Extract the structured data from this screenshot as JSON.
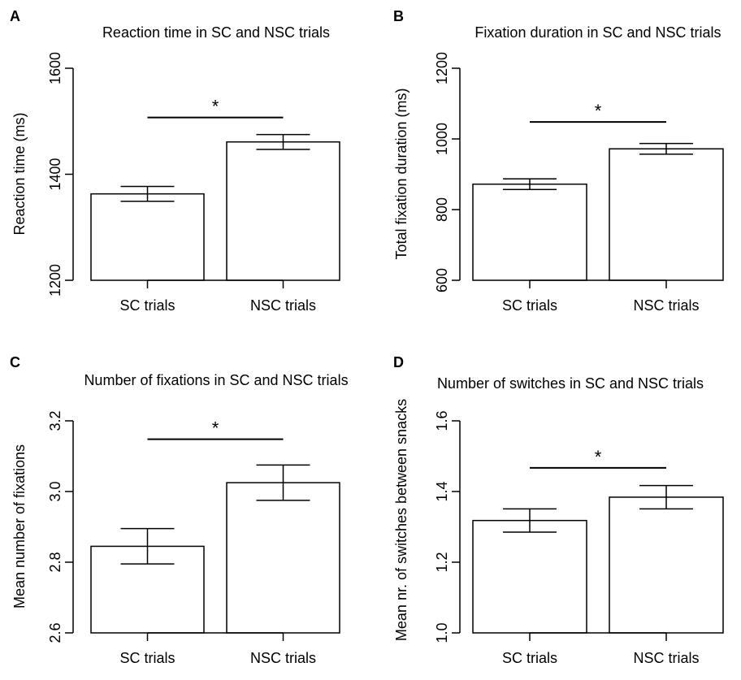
{
  "chart_data": [
    {
      "panel": "A",
      "type": "bar",
      "title": "Reaction time in SC and NSC trials",
      "ylabel": "Reaction time (ms)",
      "categories": [
        "SC trials",
        "NSC trials"
      ],
      "values": [
        1363,
        1461
      ],
      "errors": [
        14,
        14
      ],
      "ylim": [
        1200,
        1600
      ],
      "yticks": [
        1200,
        1400,
        1600
      ],
      "yticklabels": [
        "1200",
        "1400",
        "1600"
      ],
      "significance": "*",
      "sig_level": 1507,
      "grid": false
    },
    {
      "panel": "B",
      "type": "bar",
      "title": "Fixation duration in SC and NSC trials",
      "ylabel": "Total fixation duration (ms)",
      "categories": [
        "SC trials",
        "NSC trials"
      ],
      "values": [
        872,
        972
      ],
      "errors": [
        15,
        15
      ],
      "ylim": [
        600,
        1200
      ],
      "yticks": [
        600,
        800,
        1000,
        1200
      ],
      "yticklabels": [
        "600",
        "800",
        "1000",
        "1200"
      ],
      "significance": "*",
      "sig_level": 1048,
      "grid": false
    },
    {
      "panel": "C",
      "type": "bar",
      "title": "Number of fixations in SC and NSC trials",
      "ylabel": "Mean number of fixations",
      "categories": [
        "SC trials",
        "NSC trials"
      ],
      "values": [
        2.845,
        3.025
      ],
      "errors": [
        0.05,
        0.05
      ],
      "ylim": [
        2.6,
        3.2
      ],
      "yticks": [
        2.6,
        2.8,
        3.0,
        3.2
      ],
      "yticklabels": [
        "2.6",
        "2.8",
        "3.0",
        "3.2"
      ],
      "significance": "*",
      "sig_level": 3.148,
      "grid": false
    },
    {
      "panel": "D",
      "type": "bar",
      "title": "Number of switches in SC and NSC trials",
      "ylabel": "Mean nr. of switches between snacks",
      "categories": [
        "SC trials",
        "NSC trials"
      ],
      "values": [
        1.318,
        1.384
      ],
      "errors": [
        0.033,
        0.033
      ],
      "ylim": [
        1.0,
        1.6
      ],
      "yticks": [
        1.0,
        1.2,
        1.4,
        1.6
      ],
      "yticklabels": [
        "1.0",
        "1.2",
        "1.4",
        "1.6"
      ],
      "significance": "*",
      "sig_level": 1.467,
      "grid": false
    }
  ]
}
